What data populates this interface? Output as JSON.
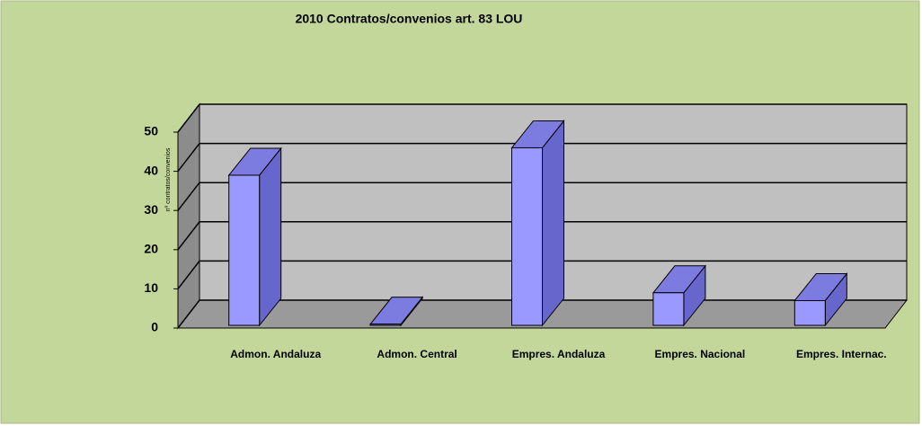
{
  "chart_data": {
    "type": "bar3d",
    "title": "2010 Contratos/convenios art. 83 LOU",
    "ylabel": "nº contratos/convenios",
    "categories": [
      "Admon. Andaluza",
      "Admon. Central",
      "Empres. Andaluza",
      "Empres. Nacional",
      "Empres. Internac."
    ],
    "values": [
      39,
      1,
      46,
      9,
      7
    ],
    "color": "#9999ff",
    "ylim": [
      0,
      50
    ],
    "yticks": [
      0,
      10,
      20,
      30,
      40,
      50
    ],
    "grid": true
  }
}
